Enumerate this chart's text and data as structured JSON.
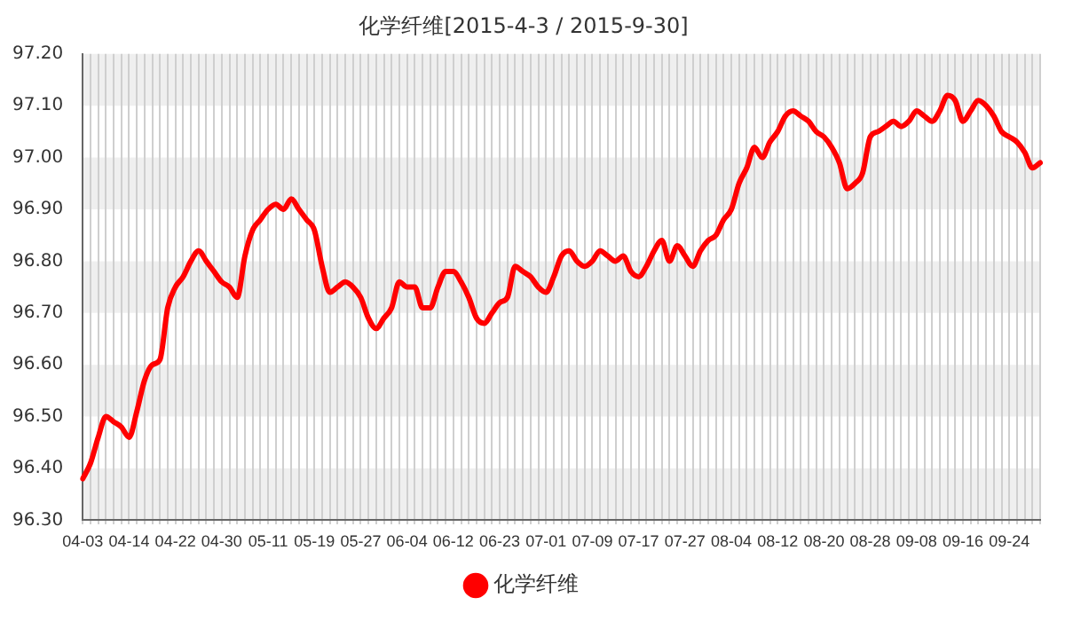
{
  "chart_data": {
    "type": "line",
    "title": "化学纤维[2015-4-3 / 2015-9-30]",
    "categories": [
      "04-03",
      null,
      null,
      null,
      null,
      null,
      "04-14",
      null,
      null,
      null,
      null,
      null,
      "04-22",
      null,
      null,
      null,
      null,
      null,
      "04-30",
      null,
      null,
      null,
      null,
      null,
      "05-11",
      null,
      null,
      null,
      null,
      null,
      "05-19",
      null,
      null,
      null,
      null,
      null,
      "05-27",
      null,
      null,
      null,
      null,
      null,
      "06-04",
      null,
      null,
      null,
      null,
      null,
      "06-12",
      null,
      null,
      null,
      null,
      null,
      "06-23",
      null,
      null,
      null,
      null,
      null,
      "07-01",
      null,
      null,
      null,
      null,
      null,
      "07-09",
      null,
      null,
      null,
      null,
      null,
      "07-17",
      null,
      null,
      null,
      null,
      null,
      "07-27",
      null,
      null,
      null,
      null,
      null,
      "08-04",
      null,
      null,
      null,
      null,
      null,
      "08-12",
      null,
      null,
      null,
      null,
      null,
      "08-20",
      null,
      null,
      null,
      null,
      null,
      "08-28",
      null,
      null,
      null,
      null,
      null,
      "09-08",
      null,
      null,
      null,
      null,
      null,
      "09-16",
      null,
      null,
      null,
      null,
      null,
      "09-24",
      null,
      null,
      null,
      null
    ],
    "series": [
      {
        "name": "化学纤维",
        "color": "#ff0000",
        "values": [
          96.38,
          96.41,
          96.46,
          96.5,
          96.49,
          96.48,
          96.46,
          96.51,
          96.57,
          96.6,
          96.61,
          96.71,
          96.75,
          96.77,
          96.8,
          96.82,
          96.8,
          96.78,
          96.76,
          96.75,
          96.73,
          96.81,
          96.86,
          96.88,
          96.9,
          96.91,
          96.9,
          96.92,
          96.9,
          96.88,
          96.86,
          96.79,
          96.74,
          96.75,
          96.76,
          96.75,
          96.73,
          96.69,
          96.67,
          96.69,
          96.71,
          96.76,
          96.75,
          96.75,
          96.71,
          96.71,
          96.75,
          96.78,
          96.78,
          96.76,
          96.73,
          96.69,
          96.68,
          96.7,
          96.72,
          96.73,
          96.79,
          96.78,
          96.77,
          96.75,
          96.74,
          96.77,
          96.81,
          96.82,
          96.8,
          96.79,
          96.8,
          96.82,
          96.81,
          96.8,
          96.81,
          96.78,
          96.77,
          96.79,
          96.82,
          96.84,
          96.8,
          96.83,
          96.81,
          96.79,
          96.82,
          96.84,
          96.85,
          96.88,
          96.9,
          96.95,
          96.98,
          97.02,
          97.0,
          97.03,
          97.05,
          97.08,
          97.09,
          97.08,
          97.07,
          97.05,
          97.04,
          97.02,
          96.99,
          96.94,
          96.95,
          96.97,
          97.04,
          97.05,
          97.06,
          97.07,
          97.06,
          97.07,
          97.09,
          97.08,
          97.07,
          97.09,
          97.12,
          97.11,
          97.07,
          97.09,
          97.11,
          97.1,
          97.08,
          97.05,
          97.04,
          97.03,
          97.01,
          96.98,
          96.99
        ]
      }
    ],
    "ylim": [
      96.3,
      97.2
    ],
    "yticks": [
      {
        "value": 96.3,
        "label": "96.30"
      },
      {
        "value": 96.4,
        "label": "96.40"
      },
      {
        "value": 96.5,
        "label": "96.50"
      },
      {
        "value": 96.6,
        "label": "96.60"
      },
      {
        "value": 96.7,
        "label": "96.70"
      },
      {
        "value": 96.8,
        "label": "96.80"
      },
      {
        "value": 96.9,
        "label": "96.90"
      },
      {
        "value": 97.0,
        "label": "97.00"
      },
      {
        "value": 97.1,
        "label": "97.10"
      },
      {
        "value": 97.2,
        "label": "97.20"
      }
    ],
    "grid": true,
    "legend": "bottom",
    "marker": "none",
    "line_style": "solid"
  }
}
